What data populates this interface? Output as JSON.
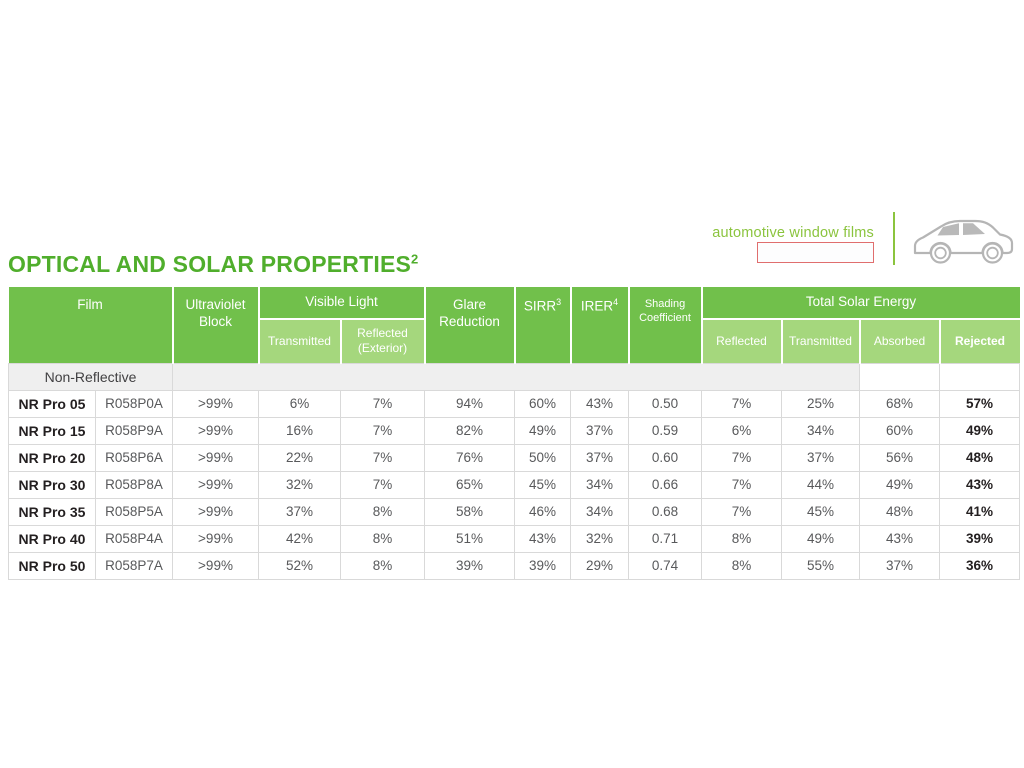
{
  "page": {
    "title": "OPTICAL AND SOLAR PROPERTIES",
    "title_superscript": "2",
    "tagline": "automotive window films"
  },
  "colors": {
    "title_green": "#50ae2c",
    "header_green": "#71c04b",
    "subheader_green": "#a5d77d",
    "tagline_green": "#8bc43e",
    "section_gray": "#efefef",
    "grid_gray": "#d9d9d9",
    "redacted_box_border": "#e06e6e",
    "body_text": "#58595b",
    "emphasis_text": "#231f20",
    "car_outline_gray": "#b5b5b5"
  },
  "table": {
    "columns": {
      "film": "Film",
      "uv_block": "Ultraviolet Block",
      "visible_light": "Visible Light",
      "vl_transmitted": "Transmitted",
      "vl_reflected": "Reflected (Exterior)",
      "glare_reduction": "Glare Reduction",
      "sirr": "SIRR",
      "sirr_sup": "3",
      "irer": "IRER",
      "irer_sup": "4",
      "shading_coefficient": "Shading Coefficient",
      "total_solar_energy": "Total Solar Energy",
      "tse_reflected": "Reflected",
      "tse_transmitted": "Transmitted",
      "tse_absorbed": "Absorbed",
      "tse_rejected": "Rejected"
    },
    "section_label": "Non-Reflective",
    "rows": [
      {
        "name": "NR Pro 05",
        "code": "R058P0A",
        "uv": ">99%",
        "vlt": "6%",
        "vlr": "7%",
        "glare": "94%",
        "sirr": "60%",
        "irer": "43%",
        "sc": "0.50",
        "tser": "7%",
        "tset": "25%",
        "tsea": "68%",
        "tsrej": "57%"
      },
      {
        "name": "NR Pro 15",
        "code": "R058P9A",
        "uv": ">99%",
        "vlt": "16%",
        "vlr": "7%",
        "glare": "82%",
        "sirr": "49%",
        "irer": "37%",
        "sc": "0.59",
        "tser": "6%",
        "tset": "34%",
        "tsea": "60%",
        "tsrej": "49%"
      },
      {
        "name": "NR Pro 20",
        "code": "R058P6A",
        "uv": ">99%",
        "vlt": "22%",
        "vlr": "7%",
        "glare": "76%",
        "sirr": "50%",
        "irer": "37%",
        "sc": "0.60",
        "tser": "7%",
        "tset": "37%",
        "tsea": "56%",
        "tsrej": "48%"
      },
      {
        "name": "NR Pro 30",
        "code": "R058P8A",
        "uv": ">99%",
        "vlt": "32%",
        "vlr": "7%",
        "glare": "65%",
        "sirr": "45%",
        "irer": "34%",
        "sc": "0.66",
        "tser": "7%",
        "tset": "44%",
        "tsea": "49%",
        "tsrej": "43%"
      },
      {
        "name": "NR Pro 35",
        "code": "R058P5A",
        "uv": ">99%",
        "vlt": "37%",
        "vlr": "8%",
        "glare": "58%",
        "sirr": "46%",
        "irer": "34%",
        "sc": "0.68",
        "tser": "7%",
        "tset": "45%",
        "tsea": "48%",
        "tsrej": "41%"
      },
      {
        "name": "NR Pro 40",
        "code": "R058P4A",
        "uv": ">99%",
        "vlt": "42%",
        "vlr": "8%",
        "glare": "51%",
        "sirr": "43%",
        "irer": "32%",
        "sc": "0.71",
        "tser": "8%",
        "tset": "49%",
        "tsea": "43%",
        "tsrej": "39%"
      },
      {
        "name": "NR Pro 50",
        "code": "R058P7A",
        "uv": ">99%",
        "vlt": "52%",
        "vlr": "8%",
        "glare": "39%",
        "sirr": "39%",
        "irer": "29%",
        "sc": "0.74",
        "tser": "8%",
        "tset": "55%",
        "tsea": "37%",
        "tsrej": "36%"
      }
    ]
  }
}
